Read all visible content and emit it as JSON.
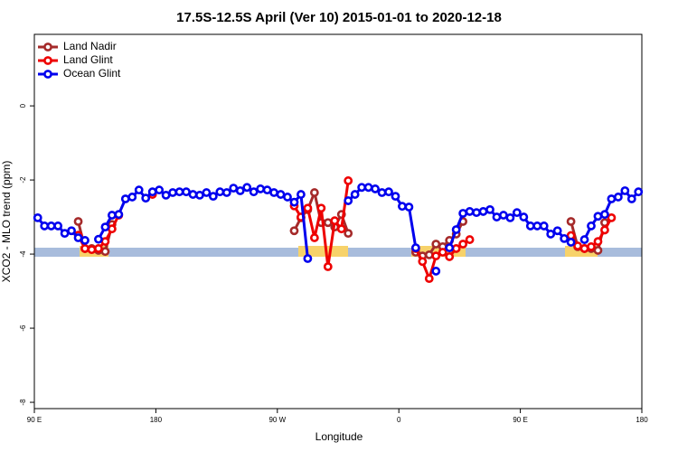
{
  "chart_data": {
    "type": "line",
    "title": "17.5S-12.5S April (Ver 10)   2015-01-01 to 2020-12-18",
    "xlabel": "Longitude",
    "ylabel": "XCO2 - MLO trend (ppm)",
    "xlim": [
      90,
      540
    ],
    "ylim": [
      -8.17,
      1.93
    ],
    "xticks": [
      {
        "value": 90,
        "label": "90 E"
      },
      180,
      {
        "value": 270,
        "label": "90 W"
      },
      {
        "value": 360,
        "label": "0"
      },
      {
        "value": 450,
        "label": "90 E"
      },
      {
        "value": 540,
        "label": "180"
      }
    ],
    "yticks": [
      0,
      -2,
      -4,
      -6,
      -8
    ],
    "legend": "top-left",
    "series": [
      {
        "name": "Land Nadir",
        "color": "#a52a2a",
        "x": [
          122.5,
          127.5,
          132.5,
          137.5,
          142.5,
          147.5,
          152.5,
          282.5,
          287.5,
          292.5,
          297.5,
          302.5,
          307.5,
          312.5,
          317.5,
          322.5,
          327.5,
          372.5,
          377.5,
          382.5,
          387.5,
          392.5,
          397.5,
          402.5,
          407.5,
          412.5,
          487.5,
          492.5,
          497.5,
          502.5,
          507.5,
          512.5
        ],
        "values": [
          -3.12,
          -3.85,
          -3.85,
          -3.9,
          -3.93,
          -3.2,
          null,
          -3.37,
          -3.02,
          -2.8,
          -2.34,
          -3.15,
          -3.15,
          -3.27,
          -2.93,
          -3.44,
          null,
          -3.95,
          -4.05,
          -4.02,
          -3.73,
          -3.8,
          -3.63,
          -3.46,
          -3.12,
          null,
          -3.12,
          -3.8,
          -3.85,
          -3.85,
          -3.9,
          -3.15
        ]
      },
      {
        "name": "Land Glint",
        "color": "#ee0000",
        "x": [
          122.5,
          127.5,
          132.5,
          137.5,
          142.5,
          147.5,
          152.5,
          157.5,
          177.5,
          182.5,
          282.5,
          287.5,
          292.5,
          297.5,
          302.5,
          307.5,
          312.5,
          317.5,
          322.5,
          327.5,
          372.5,
          377.5,
          382.5,
          387.5,
          392.5,
          397.5,
          402.5,
          407.5,
          412.5,
          417.5,
          487.5,
          492.5,
          497.5,
          502.5,
          507.5,
          512.5,
          517.5
        ],
        "values": [
          -3.49,
          -3.85,
          -3.88,
          -3.85,
          -3.66,
          -3.32,
          -2.95,
          null,
          -2.39,
          null,
          -2.7,
          -3.0,
          -2.76,
          -3.56,
          -2.76,
          -4.34,
          -3.1,
          -3.32,
          -2.02,
          null,
          -3.85,
          -4.2,
          -4.66,
          -4.05,
          -3.95,
          -4.07,
          -3.85,
          -3.73,
          -3.61,
          null,
          -3.5,
          -3.78,
          -3.85,
          -3.8,
          -3.66,
          -3.35,
          -3.02
        ]
      },
      {
        "name": "Ocean Glint",
        "color": "#0000ee",
        "x": [
          92.5,
          97.5,
          102.5,
          107.5,
          112.5,
          117.5,
          122.5,
          127.5,
          132.5,
          137.5,
          142.5,
          147.5,
          152.5,
          157.5,
          162.5,
          167.5,
          172.5,
          177.5,
          182.5,
          187.5,
          192.5,
          197.5,
          202.5,
          207.5,
          212.5,
          217.5,
          222.5,
          227.5,
          232.5,
          237.5,
          242.5,
          247.5,
          252.5,
          257.5,
          262.5,
          267.5,
          272.5,
          277.5,
          282.5,
          287.5,
          292.5,
          297.5,
          322.5,
          327.5,
          332.5,
          337.5,
          342.5,
          347.5,
          352.5,
          357.5,
          362.5,
          367.5,
          372.5,
          377.5,
          387.5,
          392.5,
          397.5,
          402.5,
          407.5,
          412.5,
          417.5,
          422.5,
          427.5,
          432.5,
          437.5,
          442.5,
          447.5,
          452.5,
          457.5,
          462.5,
          467.5,
          472.5,
          477.5,
          482.5,
          487.5,
          492.5,
          497.5,
          502.5,
          507.5,
          512.5,
          517.5,
          522.5,
          527.5,
          532.5,
          537.5
        ],
        "values": [
          -3.02,
          -3.24,
          -3.24,
          -3.24,
          -3.44,
          -3.37,
          -3.56,
          -3.63,
          null,
          -3.6,
          -3.27,
          -2.95,
          -2.93,
          -2.51,
          -2.46,
          -2.27,
          -2.49,
          -2.32,
          -2.27,
          -2.41,
          -2.34,
          -2.32,
          -2.32,
          -2.39,
          -2.41,
          -2.34,
          -2.44,
          -2.32,
          -2.34,
          -2.22,
          -2.29,
          -2.2,
          -2.32,
          -2.24,
          -2.27,
          -2.34,
          -2.39,
          -2.46,
          -2.6,
          -2.39,
          -4.12,
          null,
          -2.56,
          -2.39,
          -2.2,
          -2.2,
          -2.24,
          -2.34,
          -2.32,
          -2.44,
          -2.71,
          -2.73,
          -3.83,
          null,
          -4.46,
          null,
          -3.83,
          -3.34,
          -2.9,
          -2.85,
          -2.88,
          -2.85,
          -2.8,
          -3.0,
          -2.95,
          -3.02,
          -2.88,
          -3.0,
          -3.24,
          -3.24,
          -3.24,
          -3.46,
          -3.37,
          -3.58,
          -3.68,
          null,
          -3.61,
          -3.24,
          -2.98,
          -2.93,
          -2.51,
          -2.46,
          -2.29,
          -2.51,
          -2.32
        ]
      }
    ]
  }
}
